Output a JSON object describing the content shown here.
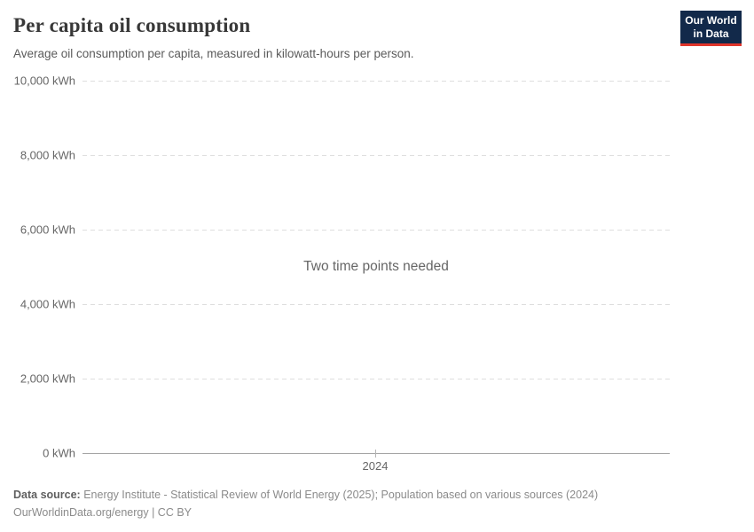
{
  "header": {
    "title": "Per capita oil consumption",
    "subtitle": "Average oil consumption per capita, measured in kilowatt-hours per person.",
    "logo": {
      "line1": "Our World",
      "line2": "in Data",
      "bg_color": "#12294a",
      "accent_color": "#e0352b"
    }
  },
  "chart": {
    "empty_message": "Two time points needed",
    "yticks": [
      "10,000 kWh",
      "8,000 kWh",
      "6,000 kWh",
      "4,000 kWh",
      "2,000 kWh",
      "0 kWh"
    ],
    "xtick": "2024"
  },
  "chart_data": {
    "type": "line",
    "title": "Per capita oil consumption",
    "subtitle": "Average oil consumption per capita, measured in kilowatt-hours per person.",
    "series": [],
    "empty_state_message": "Two time points needed",
    "xlabel": "",
    "ylabel": "kWh",
    "ylim": [
      0,
      10000
    ],
    "ytick_values": [
      0,
      2000,
      4000,
      6000,
      8000,
      10000
    ],
    "ytick_labels": [
      "0 kWh",
      "2,000 kWh",
      "4,000 kWh",
      "6,000 kWh",
      "8,000 kWh",
      "10,000 kWh"
    ],
    "xtick_values": [
      2024
    ],
    "grid": "dashed horizontal gridlines",
    "legend_position": "none"
  },
  "footer": {
    "source_label": "Data source:",
    "source_text": " Energy Institute - Statistical Review of World Energy (2025); Population based on various sources (2024)",
    "license_text": "OurWorldinData.org/energy | CC BY"
  }
}
